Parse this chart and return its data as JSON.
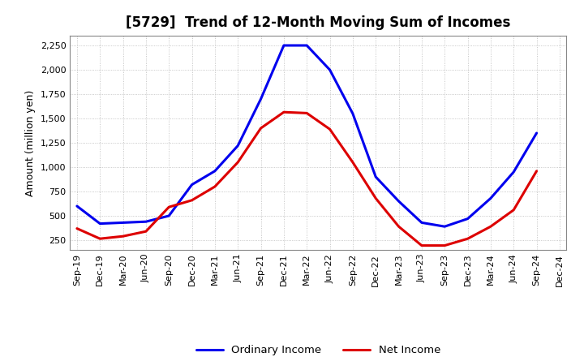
{
  "title": "[5729]  Trend of 12-Month Moving Sum of Incomes",
  "ylabel": "Amount (million yen)",
  "background_color": "#ffffff",
  "grid_color": "#b0b0b0",
  "x_labels": [
    "Sep-19",
    "Dec-19",
    "Mar-20",
    "Jun-20",
    "Sep-20",
    "Dec-20",
    "Mar-21",
    "Jun-21",
    "Sep-21",
    "Dec-21",
    "Mar-22",
    "Jun-22",
    "Sep-22",
    "Dec-22",
    "Mar-23",
    "Jun-23",
    "Sep-23",
    "Dec-23",
    "Mar-24",
    "Jun-24",
    "Sep-24",
    "Dec-24"
  ],
  "ordinary_income": [
    600,
    420,
    430,
    440,
    500,
    820,
    960,
    1220,
    1700,
    2250,
    2250,
    2000,
    1550,
    900,
    650,
    430,
    390,
    470,
    680,
    950,
    1350,
    null
  ],
  "net_income": [
    370,
    265,
    290,
    340,
    590,
    660,
    800,
    1050,
    1400,
    1565,
    1555,
    1390,
    1050,
    680,
    390,
    195,
    195,
    265,
    390,
    560,
    960,
    null
  ],
  "ordinary_color": "#0000ee",
  "net_color": "#dd0000",
  "ylim": [
    150,
    2350
  ],
  "yticks": [
    250,
    500,
    750,
    1000,
    1250,
    1500,
    1750,
    2000,
    2250
  ],
  "line_width": 2.2,
  "title_fontsize": 12,
  "tick_fontsize": 8,
  "legend_fontsize": 9.5
}
